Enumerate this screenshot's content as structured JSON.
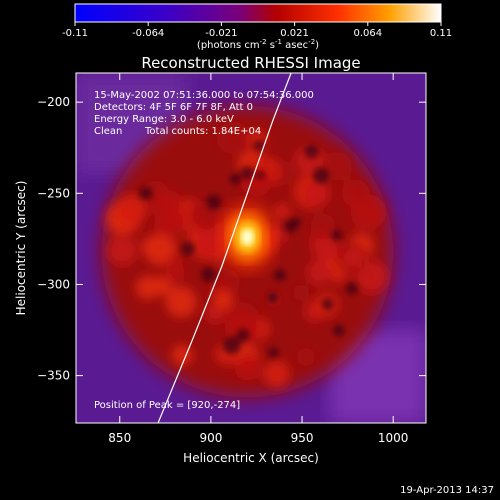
{
  "chart_data": {
    "type": "heatmap",
    "title": "Reconstructed RHESSI Image",
    "xlabel": "Heliocentric X (arcsec)",
    "ylabel": "Heliocentric Y (arcsec)",
    "xlim": [
      826,
      1018
    ],
    "ylim": [
      -376,
      -184
    ],
    "x_ticks": [
      850,
      900,
      950,
      1000
    ],
    "y_ticks": [
      -350,
      -300,
      -250,
      -200
    ],
    "colorbar": {
      "range": [
        -0.11,
        0.11
      ],
      "tick_labels": [
        "-0.11",
        "-0.064",
        "-0.021",
        "0.021",
        "0.064",
        "0.11"
      ],
      "label_main": "(photons cm",
      "label_exp1": "-2",
      "label_mid1": " s",
      "label_exp2": "-1",
      "label_mid2": " asec",
      "label_exp3": "-2",
      "label_end": ")"
    },
    "annotations": [
      "15-May-2002 07:51:36.000 to 07:54:36.000",
      "Detectors: 4F 5F 6F 7F 8F, Att 0",
      "Energy Range: 3.0 - 6.0 keV",
      "Clean",
      "Total counts: 1.84E+04"
    ],
    "peak_label": "Position of Peak = [920,-274]",
    "peak": {
      "x": 920,
      "y": -274,
      "value": 0.11
    },
    "disk_center": {
      "x": 920,
      "y": -282
    },
    "disk_radius": 80,
    "limb_points": [
      [
        871,
        -376
      ],
      [
        890,
        -330
      ],
      [
        906,
        -290
      ],
      [
        920,
        -250
      ],
      [
        934,
        -210
      ],
      [
        944,
        -184
      ]
    ]
  },
  "footer": {
    "timestamp": "19-Apr-2013 14:37"
  }
}
